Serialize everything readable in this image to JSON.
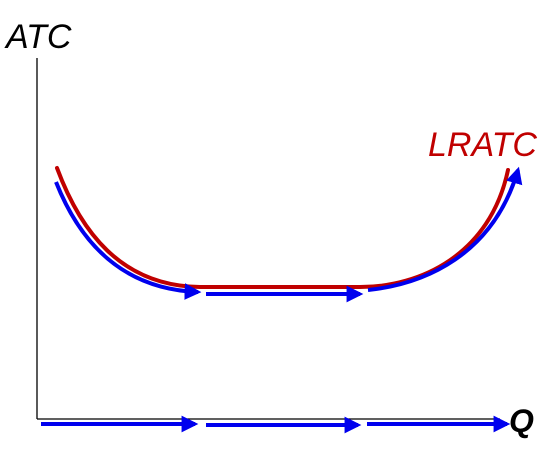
{
  "labels": {
    "y_axis": "ATC",
    "x_axis": "Q",
    "curve": "LRATC"
  },
  "colors": {
    "axis": "#000000",
    "curve": "#c00000",
    "arrows": "#0000ee",
    "text": "#000000"
  }
}
